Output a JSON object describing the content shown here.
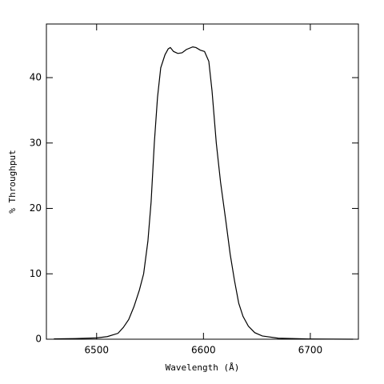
{
  "chart_data": {
    "type": "line",
    "xlabel": "Wavelength (Å)",
    "ylabel": "% Throughput",
    "x": [
      6460,
      6480,
      6500,
      6510,
      6520,
      6525,
      6530,
      6535,
      6540,
      6544,
      6548,
      6551,
      6554,
      6557,
      6560,
      6564,
      6567,
      6569,
      6572,
      6576,
      6580,
      6584,
      6590,
      6593,
      6597,
      6601,
      6605,
      6608,
      6612,
      6616,
      6621,
      6625,
      6629,
      6633,
      6637,
      6642,
      6648,
      6655,
      6670,
      6700,
      6740
    ],
    "values": [
      0.05,
      0.1,
      0.2,
      0.4,
      0.9,
      1.8,
      3,
      5,
      7.5,
      10,
      15,
      21,
      30,
      37,
      41.5,
      43.5,
      44.4,
      44.6,
      44,
      43.7,
      43.8,
      44.3,
      44.7,
      44.6,
      44.2,
      44,
      42.5,
      38,
      30,
      24,
      18,
      13,
      9,
      5.5,
      3.5,
      2,
      1,
      0.5,
      0.15,
      0.03,
      0
    ],
    "color": "#000000",
    "xlim": [
      6453,
      6745
    ],
    "ylim": [
      0,
      48.2
    ],
    "xticks": [
      6500,
      6600,
      6700
    ],
    "yticks": [
      0,
      10,
      20,
      30,
      40
    ]
  }
}
